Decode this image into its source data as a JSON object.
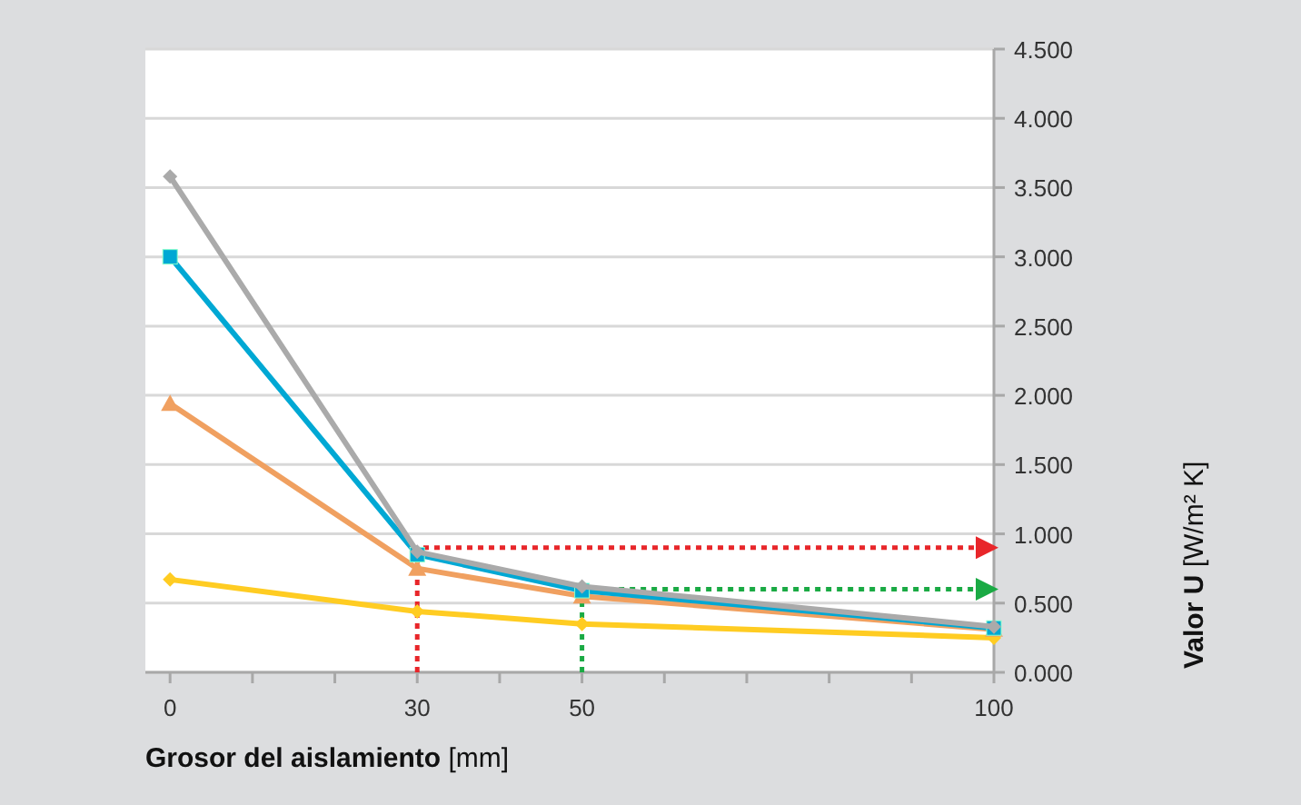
{
  "chart_data": {
    "type": "line",
    "xlabel": "Grosor del aislamiento [mm]",
    "ylabel": "Valor U [W/m² K]",
    "x": [
      0,
      30,
      50,
      100
    ],
    "xlim": [
      -3,
      100
    ],
    "xticks": [
      0,
      {
        "value": 10,
        "label": null
      },
      {
        "value": 20,
        "label": null
      },
      30,
      {
        "value": 40,
        "label": null
      },
      50,
      {
        "value": 60,
        "label": null
      },
      {
        "value": 70,
        "label": null
      },
      {
        "value": 80,
        "label": null
      },
      {
        "value": 90,
        "label": null
      },
      100
    ],
    "ylim": [
      0,
      4.5
    ],
    "yticks": [
      {
        "value": 0,
        "label": "0.000"
      },
      {
        "value": 0.5,
        "label": "0.500"
      },
      {
        "value": 1,
        "label": "1.000"
      },
      {
        "value": 1.5,
        "label": "1.500"
      },
      {
        "value": 2,
        "label": "2.000"
      },
      {
        "value": 2.5,
        "label": "2.500"
      },
      {
        "value": 3,
        "label": "3.000"
      },
      {
        "value": 3.5,
        "label": "3.500"
      },
      {
        "value": 4,
        "label": "4.000"
      },
      {
        "value": 4.5,
        "label": "4.500"
      }
    ],
    "grid": "y",
    "series": [
      {
        "color": "#aaaaaa",
        "marker": "diamond",
        "values": [
          3.58,
          0.87,
          0.62,
          0.33
        ]
      },
      {
        "color": "#00a8d4",
        "marker": "square",
        "values": [
          3.0,
          0.85,
          0.59,
          0.32
        ]
      },
      {
        "color": "#f0a060",
        "marker": "triangle",
        "values": [
          1.94,
          0.75,
          0.55,
          0.31
        ]
      },
      {
        "color": "#ffcc22",
        "marker": "diamond",
        "values": [
          0.67,
          0.44,
          0.35,
          0.25
        ]
      },
      {
        "color": "#e8262a",
        "marker": "none",
        "line_style": "dotted",
        "x": [
          30,
          30,
          100
        ],
        "values": [
          0,
          0.9,
          0.9
        ]
      },
      {
        "color": "#1aaa44",
        "marker": "none",
        "line_style": "dotted",
        "x": [
          50,
          50,
          100
        ],
        "values": [
          0,
          0.6,
          0.6
        ]
      }
    ]
  }
}
